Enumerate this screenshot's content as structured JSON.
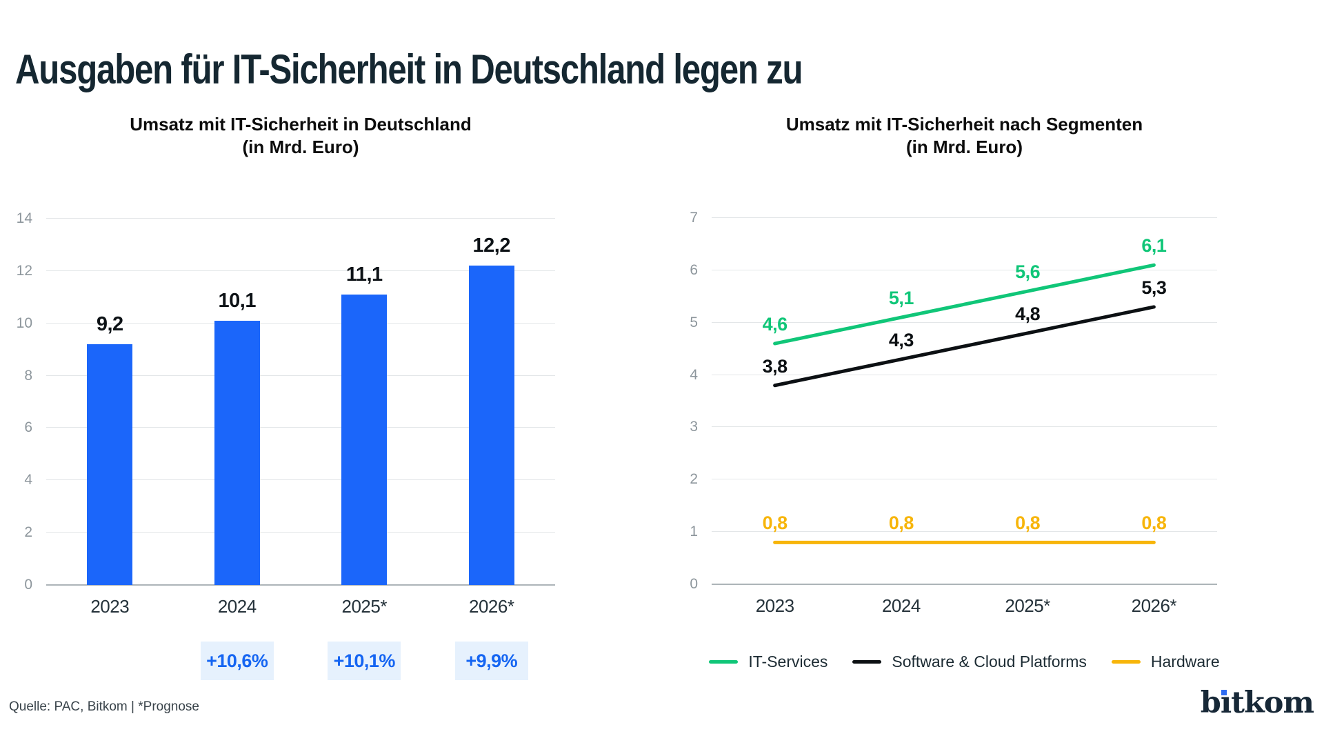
{
  "header": {
    "title": "Ausgaben für IT-Sicherheit in Deutschland legen zu"
  },
  "footer": {
    "source": "Quelle: PAC, Bitkom | *Prognose",
    "logo_text": "bitkom"
  },
  "colors": {
    "title": "#152731",
    "chart_title": "#0c0c0c",
    "bar_blue": "#1b66fa",
    "growth_text": "#1565f2",
    "growth_bg": "#e6f1fd",
    "gridline": "#e3e6e8",
    "axis_line": "#adb4b8",
    "y_tick": "#8d969c",
    "x_tick": "#25323a",
    "value_label": "#0d1216",
    "legend_text": "#1c2b33",
    "source": "#39434a",
    "logo_navy": "#172837",
    "logo_dot": "#2e6cf2"
  },
  "chart_data": [
    {
      "type": "bar",
      "title": "Umsatz mit IT-Sicherheit in Deutschland",
      "subtitle": "(in Mrd. Euro)",
      "categories": [
        "2023",
        "2024",
        "2025*",
        "2026*"
      ],
      "values": [
        9.2,
        10.1,
        11.1,
        12.2
      ],
      "value_labels": [
        "9,2",
        "10,1",
        "11,1",
        "12,2"
      ],
      "growth_badges": [
        "+10,6%",
        "+10,1%",
        "+9,9%"
      ],
      "xlabel": "",
      "ylabel": "",
      "ylim": [
        0,
        14
      ],
      "yticks": [
        0,
        2,
        4,
        6,
        8,
        10,
        12,
        14
      ],
      "grid": true,
      "legend_position": "none"
    },
    {
      "type": "line",
      "title": "Umsatz mit IT-Sicherheit nach Segmenten",
      "subtitle": "(in Mrd. Euro)",
      "categories": [
        "2023",
        "2024",
        "2025*",
        "2026*"
      ],
      "series": [
        {
          "name": "IT-Services",
          "color": "#10c678",
          "values": [
            4.6,
            5.1,
            5.6,
            6.1
          ],
          "value_labels": [
            "4,6",
            "5,1",
            "5,6",
            "6,1"
          ]
        },
        {
          "name": "Software & Cloud Platforms",
          "color": "#0c1013",
          "values": [
            3.8,
            4.3,
            4.8,
            5.3
          ],
          "value_labels": [
            "3,8",
            "4,3",
            "4,8",
            "5,3"
          ]
        },
        {
          "name": "Hardware",
          "color": "#f7b50a",
          "values": [
            0.8,
            0.8,
            0.8,
            0.8
          ],
          "value_labels": [
            "0,8",
            "0,8",
            "0,8",
            "0,8"
          ]
        }
      ],
      "xlabel": "",
      "ylabel": "",
      "ylim": [
        0,
        7
      ],
      "yticks": [
        0,
        1,
        2,
        3,
        4,
        5,
        6,
        7
      ],
      "grid": true,
      "legend_position": "bottom"
    }
  ]
}
